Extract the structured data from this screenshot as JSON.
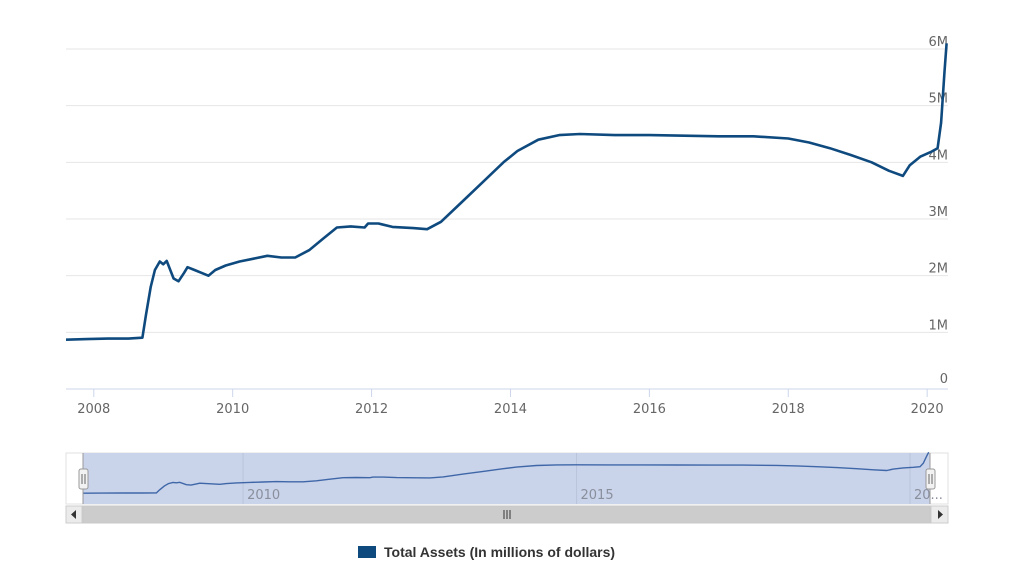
{
  "colors": {
    "series": "#0f4a7f",
    "grid": "#e6e6e6",
    "navigator_fill": "#c9d3ea",
    "scrollbar_track": "#f2f2f2",
    "scrollbar_thumb": "#cccccc"
  },
  "chart_data": {
    "type": "line",
    "title": "",
    "xlabel": "",
    "ylabel": "",
    "xlim": [
      2007.6,
      2020.3
    ],
    "ylim": [
      0,
      6000000
    ],
    "y_axis_position": "right",
    "grid": true,
    "legend_placement": "bottom-center",
    "x_ticks": [
      "2008",
      "2010",
      "2012",
      "2014",
      "2016",
      "2018",
      "2020"
    ],
    "y_ticks": [
      "0",
      "1M",
      "2M",
      "3M",
      "4M",
      "5M",
      "6M"
    ],
    "series": [
      {
        "name": "Total Assets (In millions of dollars)",
        "points": [
          [
            2007.6,
            870000
          ],
          [
            2007.9,
            880000
          ],
          [
            2008.2,
            890000
          ],
          [
            2008.5,
            890000
          ],
          [
            2008.7,
            905000
          ],
          [
            2008.75,
            1300000
          ],
          [
            2008.82,
            1800000
          ],
          [
            2008.88,
            2100000
          ],
          [
            2008.95,
            2250000
          ],
          [
            2009.0,
            2200000
          ],
          [
            2009.05,
            2260000
          ],
          [
            2009.15,
            1950000
          ],
          [
            2009.22,
            1900000
          ],
          [
            2009.3,
            2050000
          ],
          [
            2009.35,
            2150000
          ],
          [
            2009.45,
            2100000
          ],
          [
            2009.55,
            2050000
          ],
          [
            2009.65,
            2000000
          ],
          [
            2009.75,
            2100000
          ],
          [
            2009.9,
            2180000
          ],
          [
            2010.1,
            2250000
          ],
          [
            2010.3,
            2300000
          ],
          [
            2010.5,
            2350000
          ],
          [
            2010.7,
            2320000
          ],
          [
            2010.9,
            2320000
          ],
          [
            2011.1,
            2450000
          ],
          [
            2011.3,
            2650000
          ],
          [
            2011.5,
            2850000
          ],
          [
            2011.7,
            2870000
          ],
          [
            2011.9,
            2850000
          ],
          [
            2011.95,
            2920000
          ],
          [
            2012.1,
            2920000
          ],
          [
            2012.3,
            2860000
          ],
          [
            2012.6,
            2840000
          ],
          [
            2012.8,
            2820000
          ],
          [
            2013.0,
            2950000
          ],
          [
            2013.3,
            3300000
          ],
          [
            2013.6,
            3650000
          ],
          [
            2013.9,
            4000000
          ],
          [
            2014.1,
            4200000
          ],
          [
            2014.4,
            4400000
          ],
          [
            2014.7,
            4480000
          ],
          [
            2015.0,
            4500000
          ],
          [
            2015.5,
            4480000
          ],
          [
            2016.0,
            4480000
          ],
          [
            2016.5,
            4470000
          ],
          [
            2017.0,
            4460000
          ],
          [
            2017.5,
            4460000
          ],
          [
            2018.0,
            4420000
          ],
          [
            2018.3,
            4350000
          ],
          [
            2018.6,
            4250000
          ],
          [
            2018.9,
            4130000
          ],
          [
            2019.2,
            4000000
          ],
          [
            2019.45,
            3850000
          ],
          [
            2019.65,
            3760000
          ],
          [
            2019.75,
            3950000
          ],
          [
            2019.9,
            4100000
          ],
          [
            2020.05,
            4180000
          ],
          [
            2020.15,
            4250000
          ],
          [
            2020.2,
            4700000
          ],
          [
            2020.25,
            5600000
          ],
          [
            2020.28,
            6100000
          ]
        ]
      }
    ],
    "navigator": {
      "x_ticks": [
        "2010",
        "2015",
        "20..."
      ]
    }
  }
}
